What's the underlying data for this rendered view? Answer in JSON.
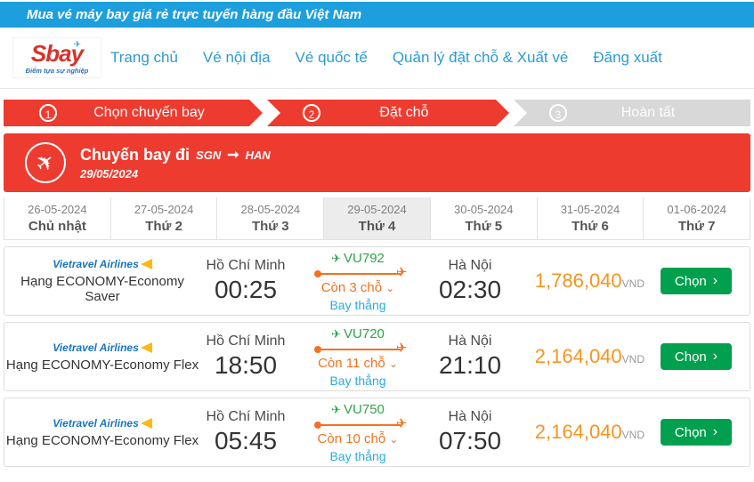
{
  "topbar": {
    "announcement": "Mua vé máy bay giá rẻ trực tuyến hàng đầu Việt Nam"
  },
  "header": {
    "logo": {
      "brand": "Sbay",
      "tagline": "Điểm tựa sự nghiệp"
    },
    "nav": {
      "home": "Trang chủ",
      "domestic": "Vé nội địa",
      "international": "Vé quốc tế",
      "manage": "Quản lý đặt chỗ & Xuất vé",
      "logout": "Đăng xuất"
    }
  },
  "steps": {
    "step1": {
      "number": "1",
      "label": "Chọn chuyến bay"
    },
    "step2": {
      "number": "2",
      "label": "Đặt chỗ"
    },
    "step3": {
      "number": "3",
      "label": "Hoàn tất"
    }
  },
  "banner": {
    "title": "Chuyến bay đi",
    "from": "SGN",
    "to": "HAN",
    "date": "29/05/2024"
  },
  "date_tabs": [
    {
      "date": "26-05-2024",
      "day": "Chủ nhật"
    },
    {
      "date": "27-05-2024",
      "day": "Thứ 2"
    },
    {
      "date": "28-05-2024",
      "day": "Thứ 3"
    },
    {
      "date": "29-05-2024",
      "day": "Thứ 4"
    },
    {
      "date": "30-05-2024",
      "day": "Thứ 5"
    },
    {
      "date": "31-05-2024",
      "day": "Thứ 6"
    },
    {
      "date": "01-06-2024",
      "day": "Thứ 7"
    }
  ],
  "flights": [
    {
      "airline": "Vietravel Airlines",
      "fare_class": "Hạng ECONOMY-Economy Saver",
      "depart_city": "Hồ Chí Minh",
      "depart_time": "00:25",
      "flight_no": "VU792",
      "seats_left": "Còn 3 chỗ",
      "route_type": "Bay thẳng",
      "arrive_city": "Hà Nội",
      "arrive_time": "02:30",
      "price": "1,786,040",
      "currency": "VND",
      "select": "Chọn"
    },
    {
      "airline": "Vietravel Airlines",
      "fare_class": "Hạng ECONOMY-Economy Flex",
      "depart_city": "Hồ Chí Minh",
      "depart_time": "18:50",
      "flight_no": "VU720",
      "seats_left": "Còn 11 chỗ",
      "route_type": "Bay thẳng",
      "arrive_city": "Hà Nội",
      "arrive_time": "21:10",
      "price": "2,164,040",
      "currency": "VND",
      "select": "Chọn"
    },
    {
      "airline": "Vietravel Airlines",
      "fare_class": "Hạng ECONOMY-Economy Flex",
      "depart_city": "Hồ Chí Minh",
      "depart_time": "05:45",
      "flight_no": "VU750",
      "seats_left": "Còn 10 chỗ",
      "route_type": "Bay thẳng",
      "arrive_city": "Hà Nội",
      "arrive_time": "07:50",
      "price": "2,164,040",
      "currency": "VND",
      "select": "Chọn"
    }
  ],
  "icons": {
    "plane": "✈",
    "arrow_right": "➞",
    "chevron_right": "›",
    "chevron_down": "⌄"
  },
  "colors": {
    "primary_blue": "#1d9fdd",
    "link_blue": "#2d9ad2",
    "brand_red": "#ee3b30",
    "accent_orange": "#f4711f",
    "price_orange": "#f7941e",
    "button_green": "#00a04e",
    "flight_green": "#2ea44a",
    "direct_blue": "#2aabe3",
    "inactive_gray": "#d8d8d8"
  }
}
